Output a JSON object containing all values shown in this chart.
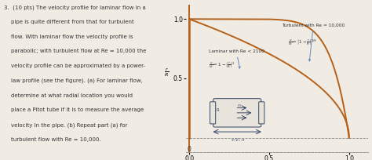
{
  "background_color": "#f0ece4",
  "chart_bg": "#f0ece4",
  "curve_color": "#b5611a",
  "ann_color": "#6688bb",
  "text_color": "#333333",
  "xlim": [
    -0.02,
    1.12
  ],
  "ylim": [
    -0.12,
    1.12
  ],
  "xticks": [
    0,
    0.5,
    1.0
  ],
  "yticks": [
    0.5,
    1.0
  ],
  "turbulent_label": "Turbulent with Re = 10,000",
  "laminar_label": "Laminar with Re < 2100",
  "problem_text": [
    "3.  (10 pts) The velocity profile for laminar flow in a",
    "    pipe is quite different from that for turbulent",
    "    flow. With laminar flow the velocity profile is",
    "    parabolic; with turbulent flow at Re = 10,000 the",
    "    velocity profile can be approximated by a power-",
    "    law profile (see the figure). (a) For laminar flow,",
    "    determine at what radial location you would",
    "    place a Pitot tube if it is to measure the average",
    "    velocity in the pipe. (b) Repeat part (a) for",
    "    turbulent flow with Re = 10,000."
  ]
}
